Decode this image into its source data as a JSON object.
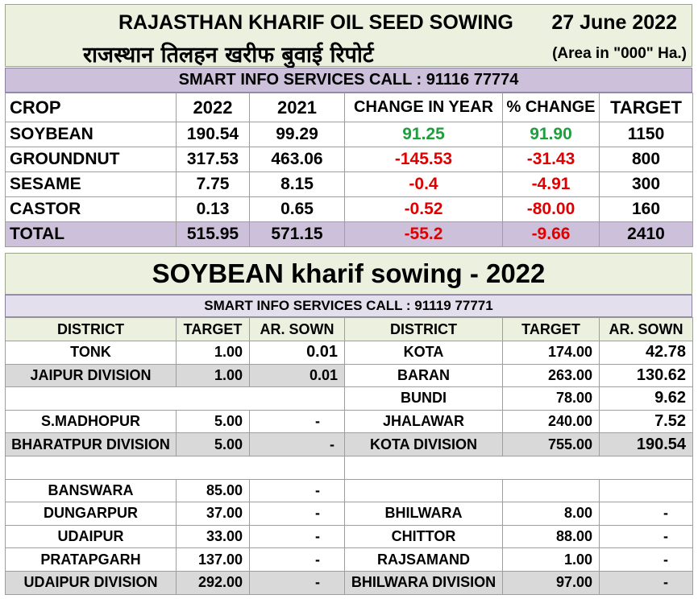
{
  "header": {
    "title_en": "RAJASTHAN KHARIF OIL SEED SOWING",
    "title_hi": "राजस्थान तिलहन खरीफ बुवाई रिपोर्ट",
    "date": "27 June 2022",
    "area_note": "(Area in \"000\" Ha.)"
  },
  "info_bar_1": "SMART INFO SERVICES CALL : 91116 77774",
  "summary": {
    "columns": [
      "CROP",
      "2022",
      "2021",
      "CHANGE IN  YEAR",
      "% CHANGE",
      "TARGET"
    ],
    "rows": [
      {
        "crop": "SOYBEAN",
        "y2022": "190.54",
        "y2021": "99.29",
        "change": "91.25",
        "pct": "91.90",
        "target": "1150",
        "status": "positive"
      },
      {
        "crop": "GROUNDNUT",
        "y2022": "317.53",
        "y2021": "463.06",
        "change": "-145.53",
        "pct": "-31.43",
        "target": "800",
        "status": "negative"
      },
      {
        "crop": "SESAME",
        "y2022": "7.75",
        "y2021": "8.15",
        "change": "-0.4",
        "pct": "-4.91",
        "target": "300",
        "status": "negative"
      },
      {
        "crop": "CASTOR",
        "y2022": "0.13",
        "y2021": "0.65",
        "change": "-0.52",
        "pct": "-80.00",
        "target": "160",
        "status": "negative"
      }
    ],
    "total": {
      "crop": "TOTAL",
      "y2022": "515.95",
      "y2021": "571.15",
      "change": "-55.2",
      "pct": "-9.66",
      "target": "2410"
    }
  },
  "section_title": "SOYBEAN kharif sowing - 2022",
  "info_bar_2": "SMART INFO SERVICES CALL : 91119 77771",
  "district": {
    "columns": [
      "DISTRICT",
      "TARGET",
      "AR. SOWN",
      "DISTRICT",
      "TARGET",
      "AR. SOWN"
    ],
    "rows": [
      {
        "l_name": "TONK",
        "l_target": "1.00",
        "l_sown": "0.01",
        "r_name": "KOTA",
        "r_target": "174.00",
        "r_sown": "42.78"
      },
      {
        "l_name": "JAIPUR DIVISION",
        "l_target": "1.00",
        "l_sown": "0.01",
        "r_name": "BARAN",
        "r_target": "263.00",
        "r_sown": "130.62"
      },
      {
        "l_name": "",
        "l_target": "",
        "l_sown": "",
        "r_name": "BUNDI",
        "r_target": "78.00",
        "r_sown": "9.62"
      },
      {
        "l_name": "S.MADHOPUR",
        "l_target": "5.00",
        "l_sown": "-",
        "r_name": "JHALAWAR",
        "r_target": "240.00",
        "r_sown": "7.52"
      },
      {
        "l_name": "BHARATPUR DIVISION",
        "l_target": "5.00",
        "l_sown": "-",
        "r_name": "KOTA DIVISION",
        "r_target": "755.00",
        "r_sown": "190.54"
      },
      {
        "l_name": "",
        "l_target": "",
        "l_sown": "",
        "r_name": "",
        "r_target": "",
        "r_sown": ""
      },
      {
        "l_name": "BANSWARA",
        "l_target": "85.00",
        "l_sown": "-",
        "r_name": "",
        "r_target": "",
        "r_sown": ""
      },
      {
        "l_name": "DUNGARPUR",
        "l_target": "37.00",
        "l_sown": "-",
        "r_name": "BHILWARA",
        "r_target": "8.00",
        "r_sown": "-"
      },
      {
        "l_name": "UDAIPUR",
        "l_target": "33.00",
        "l_sown": "-",
        "r_name": "CHITTOR",
        "r_target": "88.00",
        "r_sown": "-"
      },
      {
        "l_name": "PRATAPGARH",
        "l_target": "137.00",
        "l_sown": "-",
        "r_name": "RAJSAMAND",
        "r_target": "1.00",
        "r_sown": "-"
      },
      {
        "l_name": "UDAIPUR DIVISION",
        "l_target": "292.00",
        "l_sown": "-",
        "r_name": "BHILWARA DIVISION",
        "r_target": "97.00",
        "r_sown": "-"
      }
    ]
  },
  "colors": {
    "header_bg": "#ebf1de",
    "info_bar_bg": "#ccc0da",
    "positive": "#1e9e3c",
    "negative": "#e00000",
    "division_row_bg": "#d9d9d9"
  }
}
